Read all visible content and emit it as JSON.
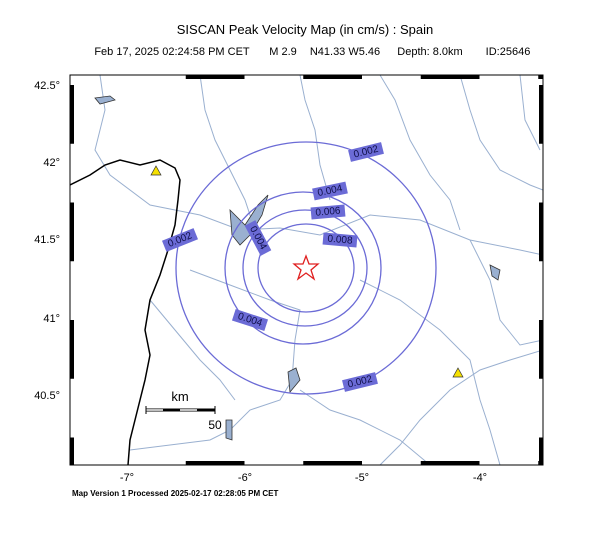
{
  "header": {
    "title": "SISCAN Peak Velocity Map (in cm/s) : Spain",
    "info": [
      "Feb 17, 2025 02:24:58 PM CET",
      "M 2.9",
      "N41.33 W5.46",
      "Depth: 8.0km",
      "ID:25646"
    ]
  },
  "axes": {
    "lat_labels": [
      "42.5°",
      "42°",
      "41.5°",
      "41°",
      "40.5°"
    ],
    "lon_labels": [
      "-7°",
      "-6°",
      "-5°",
      "-4°"
    ]
  },
  "contour_labels": [
    "0.002",
    "0.004",
    "0.006",
    "0.008",
    "0.004",
    "0.002",
    "0.004",
    "0.002"
  ],
  "scale": {
    "unit": "km",
    "distance": "50"
  },
  "footer": "Map Version 1 Processed 2025-02-17 02:28:05 PM CET"
}
